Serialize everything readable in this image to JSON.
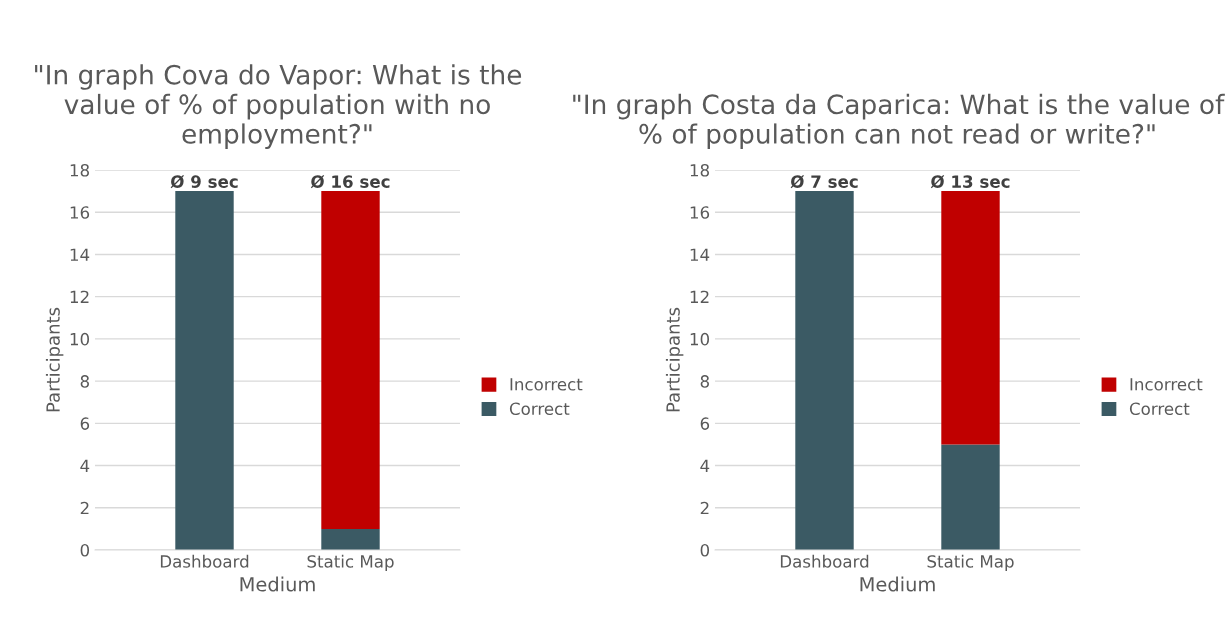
{
  "chart_data": [
    {
      "type": "bar",
      "title": "\"In graph Cova do Vapor: What is the value of % of population with no employment?\"",
      "xlabel": "Medium",
      "ylabel": "Participants",
      "categories": [
        "Dashboard",
        "Static Map"
      ],
      "stacked": true,
      "series": [
        {
          "name": "Correct",
          "color": "#3b5a64",
          "values": [
            17,
            1
          ]
        },
        {
          "name": "Incorrect",
          "color": "#c00000",
          "values": [
            0,
            16
          ]
        }
      ],
      "totals": [
        "Ø 9 sec",
        "Ø 16 sec"
      ],
      "ylim": [
        0,
        18
      ],
      "yticks": [
        0,
        2,
        4,
        6,
        8,
        10,
        12,
        14,
        16,
        18
      ],
      "grid": "y",
      "legend": "right"
    },
    {
      "type": "bar",
      "title": "\"In graph Costa da Caparica: What is the value of % of population can not read or write?\"",
      "xlabel": "Medium",
      "ylabel": "Participants",
      "categories": [
        "Dashboard",
        "Static Map"
      ],
      "stacked": true,
      "series": [
        {
          "name": "Correct",
          "color": "#3b5a64",
          "values": [
            17,
            5
          ]
        },
        {
          "name": "Incorrect",
          "color": "#c00000",
          "values": [
            0,
            12
          ]
        }
      ],
      "totals": [
        "Ø 7 sec",
        "Ø 13 sec"
      ],
      "ylim": [
        0,
        18
      ],
      "yticks": [
        0,
        2,
        4,
        6,
        8,
        10,
        12,
        14,
        16,
        18
      ],
      "grid": "y",
      "legend": "right"
    }
  ]
}
